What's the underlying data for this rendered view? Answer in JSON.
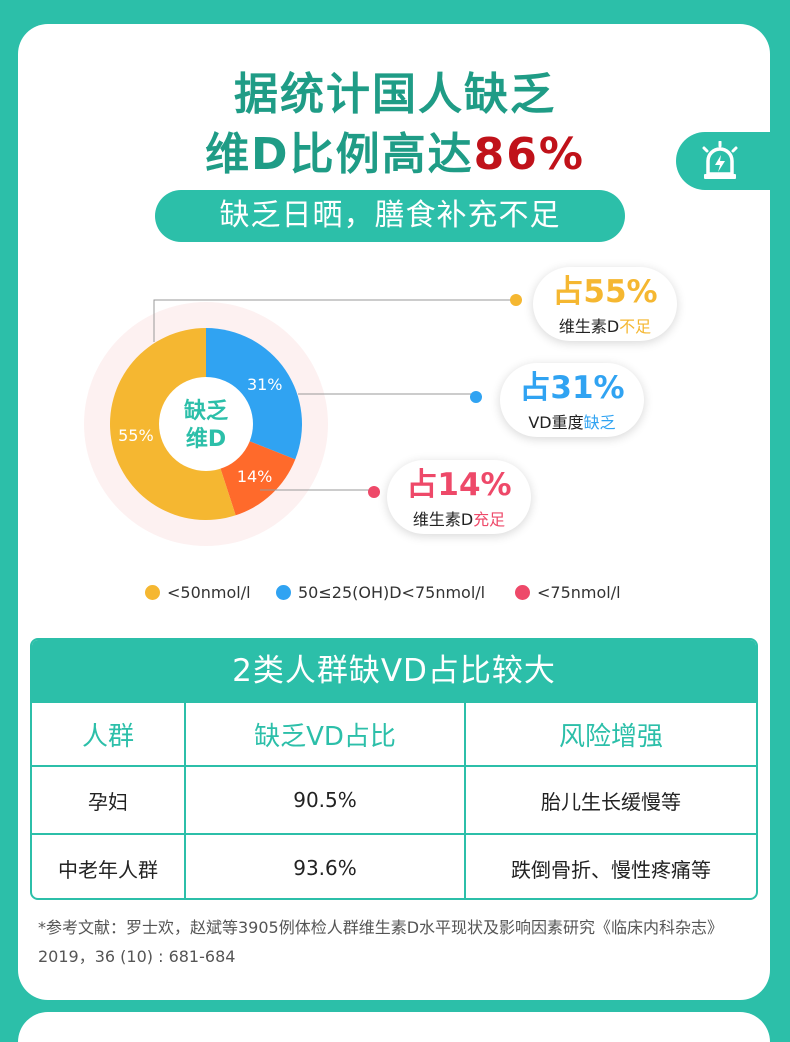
{
  "title": {
    "line1": "据统计国人缺乏",
    "line2_prefix": "维D比例高达",
    "line2_highlight": "86%"
  },
  "subtitle": "缺乏日晒，膳食补充不足",
  "alert_icon": "siren-lightning-icon",
  "colors": {
    "teal": "#2cbfa9",
    "yellow": "#f5b731",
    "blue": "#30a3f2",
    "red": "#ee4969",
    "orange": "#ff6a2b",
    "dark_red": "#c0121a"
  },
  "chart_data": {
    "type": "pie",
    "center_label": [
      "缺乏",
      "维D"
    ],
    "slices": [
      {
        "value": 55,
        "label": "55%",
        "color": "#f5b731"
      },
      {
        "value": 31,
        "label": "31%",
        "color": "#30a3f2"
      },
      {
        "value": 14,
        "label": "14%",
        "color": "#ff6a2b"
      }
    ],
    "callouts": [
      {
        "big": "占55%",
        "text": "维生素D",
        "highlight": "不足",
        "color": "#f5b731"
      },
      {
        "big": "占31%",
        "text": "VD重度",
        "highlight": "缺乏",
        "color": "#30a3f2"
      },
      {
        "big": "占14%",
        "text": "维生素D",
        "highlight": "充足",
        "color": "#ee4969"
      }
    ],
    "legend": [
      {
        "label": "<50nmol/l",
        "color": "#f5b731"
      },
      {
        "label": "50≤25(OH)D<75nmol/l",
        "color": "#30a3f2"
      },
      {
        "label": "<75nmol/l",
        "color": "#ee4969"
      }
    ]
  },
  "table": {
    "title": "2类人群缺VD占比较大",
    "headers": [
      "人群",
      "缺乏VD占比",
      "风险增强"
    ],
    "rows": [
      [
        "孕妇",
        "90.5%",
        "胎儿生长缓慢等"
      ],
      [
        "中老年人群",
        "93.6%",
        "跌倒骨折、慢性疼痛等"
      ]
    ]
  },
  "reference": "*参考文献：罗士欢，赵斌等3905例体检人群维生素D水平现状及影响因素研究《临床内科杂志》2019，36 (10) : 681-684"
}
